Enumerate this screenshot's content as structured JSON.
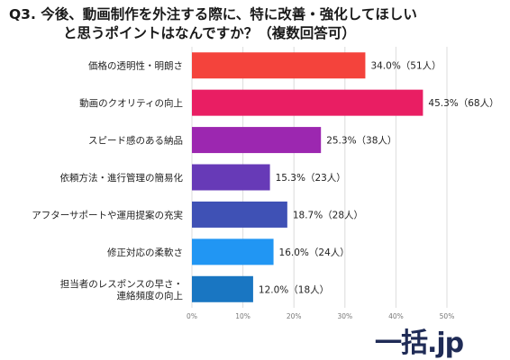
{
  "title": {
    "line1": "Q3. 今後、動画制作を外注する際に、特に改善・強化してほしい",
    "line2": "と思うポイントはなんですか？（複数回答可）"
  },
  "chart_data": {
    "type": "bar",
    "orientation": "horizontal",
    "categories": [
      [
        "価格の透明性・明朗さ"
      ],
      [
        "動画のクオリティの向上"
      ],
      [
        "スピード感のある納品"
      ],
      [
        "依頼方法・進行管理の簡易化"
      ],
      [
        "アフターサポートや運用提案の充実"
      ],
      [
        "修正対応の柔軟さ"
      ],
      [
        "担当者のレスポンスの早さ・",
        "連絡頻度の向上"
      ]
    ],
    "values": [
      34.0,
      45.3,
      25.3,
      15.3,
      18.7,
      16.0,
      12.0
    ],
    "value_labels": [
      "34.0%（51人）",
      "45.3%（68人）",
      "25.3%（38人）",
      "15.3%（23人）",
      "18.7%（28人）",
      "16.0%（24人）",
      "12.0%（18人）"
    ],
    "colors": [
      "#f4433c",
      "#e91e63",
      "#9c27b0",
      "#673ab7",
      "#3f51b5",
      "#2196f3",
      "#1976c2"
    ],
    "xlim": [
      0,
      50
    ],
    "xticks": [
      "0%",
      "10%",
      "20%",
      "30%",
      "40%",
      "50%"
    ],
    "grid": true
  },
  "logo": {
    "text": "一括.jp",
    "color": "#1f2b56"
  }
}
